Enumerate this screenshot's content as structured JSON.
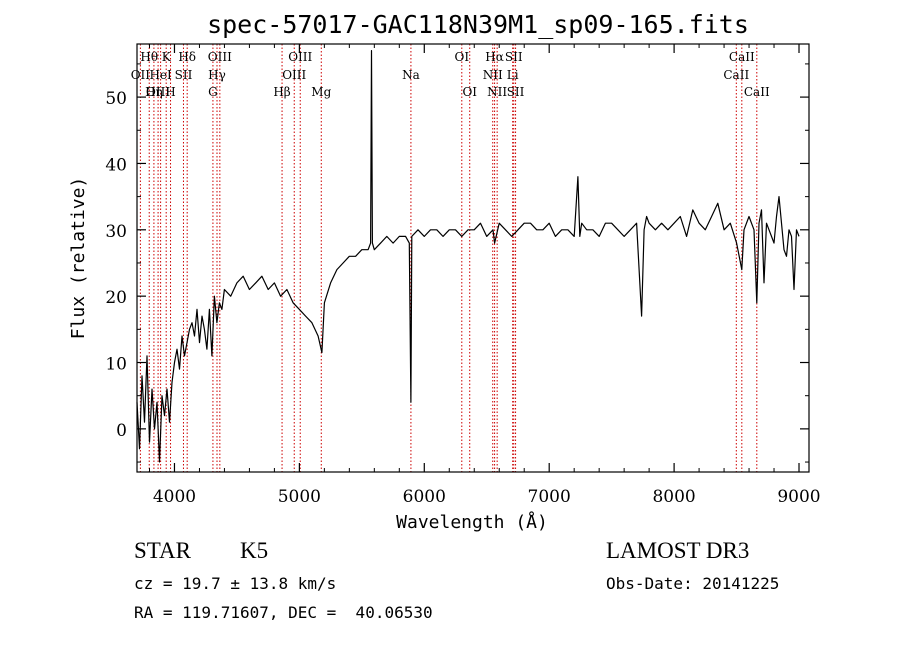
{
  "chart_data": {
    "type": "line",
    "title": "spec-57017-GAC118N39M1_sp09-165.fits",
    "xlabel": "Wavelength (Å)",
    "ylabel": "Flux (relative)",
    "xlim": [
      3700,
      9080
    ],
    "ylim": [
      -6.5,
      58
    ],
    "xticks": [
      4000,
      5000,
      6000,
      7000,
      8000,
      9000
    ],
    "xtick_labels": [
      "4000",
      "5000",
      "6000",
      "7000",
      "8000",
      "9000"
    ],
    "yticks": [
      0,
      10,
      20,
      30,
      40,
      50
    ],
    "ytick_labels": [
      "0",
      "10",
      "20",
      "30",
      "40",
      "50"
    ],
    "grid": false,
    "series": [
      {
        "name": "Flux",
        "x": [
          3700,
          3720,
          3740,
          3760,
          3780,
          3800,
          3820,
          3840,
          3860,
          3880,
          3900,
          3920,
          3940,
          3960,
          3980,
          4000,
          4020,
          4040,
          4060,
          4080,
          4100,
          4120,
          4140,
          4160,
          4180,
          4200,
          4220,
          4240,
          4260,
          4280,
          4300,
          4320,
          4340,
          4360,
          4380,
          4400,
          4450,
          4500,
          4550,
          4600,
          4650,
          4700,
          4750,
          4800,
          4850,
          4900,
          4950,
          5000,
          5050,
          5100,
          5150,
          5180,
          5200,
          5250,
          5300,
          5350,
          5400,
          5450,
          5500,
          5550,
          5570,
          5577,
          5585,
          5600,
          5650,
          5700,
          5750,
          5800,
          5850,
          5880,
          5893,
          5900,
          5950,
          6000,
          6050,
          6100,
          6150,
          6200,
          6250,
          6300,
          6350,
          6400,
          6450,
          6500,
          6550,
          6563,
          6600,
          6650,
          6700,
          6750,
          6800,
          6850,
          6900,
          6950,
          7000,
          7050,
          7100,
          7150,
          7200,
          7230,
          7245,
          7260,
          7300,
          7350,
          7400,
          7450,
          7500,
          7550,
          7600,
          7650,
          7700,
          7740,
          7760,
          7780,
          7800,
          7850,
          7900,
          7950,
          8000,
          8050,
          8100,
          8150,
          8200,
          8250,
          8300,
          8350,
          8400,
          8450,
          8500,
          8542,
          8560,
          8600,
          8640,
          8662,
          8680,
          8700,
          8720,
          8740,
          8760,
          8780,
          8800,
          8820,
          8840,
          8860,
          8880,
          8900,
          8920,
          8940,
          8960,
          8980,
          9000
        ],
        "y": [
          4,
          -3,
          8,
          1,
          11,
          -2,
          6,
          0,
          4,
          -5,
          5,
          2,
          6,
          1,
          7,
          10,
          12,
          9,
          14,
          11,
          13,
          15,
          16,
          14,
          18,
          13,
          17,
          15,
          12,
          18,
          11,
          20,
          16,
          19,
          18,
          21,
          20,
          22,
          23,
          21,
          22,
          23,
          21,
          22,
          20,
          21,
          19,
          18,
          17,
          16,
          14,
          11.5,
          19,
          22,
          24,
          25,
          26,
          26,
          27,
          27,
          28,
          57,
          28,
          27,
          28,
          29,
          28,
          29,
          29,
          28,
          4,
          29,
          30,
          29,
          30,
          30,
          29,
          30,
          30,
          29,
          30,
          30,
          31,
          29,
          30,
          28,
          31,
          30,
          29,
          30,
          31,
          31,
          30,
          30,
          31,
          29,
          30,
          30,
          29,
          38,
          29,
          31,
          30,
          30,
          29,
          31,
          31,
          30,
          29,
          30,
          31,
          17,
          30,
          32,
          31,
          30,
          31,
          30,
          31,
          32,
          29,
          33,
          31,
          30,
          32,
          34,
          30,
          31,
          28,
          24,
          30,
          32,
          30,
          19,
          31,
          33,
          22,
          31,
          30,
          29,
          28,
          32,
          35,
          31,
          27,
          26,
          30,
          29,
          21,
          30,
          29
        ]
      }
    ],
    "lines": [
      {
        "label": "Hθ",
        "wavelength": 3797.9,
        "row": 0
      },
      {
        "label": "OII",
        "wavelength": 3727.1,
        "row": 1
      },
      {
        "label": "OIII",
        "wavelength": 3868.8,
        "row": 2
      },
      {
        "label": "K",
        "wavelength": 3933.7,
        "row": 0
      },
      {
        "label": "HeI",
        "wavelength": 3889.0,
        "row": 1
      },
      {
        "label": "Hη",
        "wavelength": 3835.4,
        "row": 2
      },
      {
        "label": "Hδ",
        "wavelength": 4101.7,
        "row": 0
      },
      {
        "label": "SII",
        "wavelength": 4072.0,
        "row": 1
      },
      {
        "label": "H",
        "wavelength": 3968.5,
        "row": 2
      },
      {
        "label": "OIII",
        "wavelength": 4363.2,
        "row": 0
      },
      {
        "label": "Hγ",
        "wavelength": 4340.5,
        "row": 1
      },
      {
        "label": "G",
        "wavelength": 4307.9,
        "row": 2
      },
      {
        "label": "OIII",
        "wavelength": 5006.8,
        "row": 0
      },
      {
        "label": "OIII",
        "wavelength": 4958.9,
        "row": 1
      },
      {
        "label": "Hβ",
        "wavelength": 4861.3,
        "row": 2
      },
      {
        "label": "Mg",
        "wavelength": 5175.3,
        "row": 2
      },
      {
        "label": "Na",
        "wavelength": 5893.0,
        "row": 1
      },
      {
        "label": "OI",
        "wavelength": 6300.3,
        "row": 0
      },
      {
        "label": "OI",
        "wavelength": 6363.8,
        "row": 2
      },
      {
        "label": "Hα",
        "wavelength": 6562.8,
        "row": 0
      },
      {
        "label": "SII",
        "wavelength": 6716.4,
        "row": 0
      },
      {
        "label": "NII",
        "wavelength": 6548.1,
        "row": 1
      },
      {
        "label": "Li",
        "wavelength": 6707.8,
        "row": 1
      },
      {
        "label": "NII",
        "wavelength": 6583.4,
        "row": 2
      },
      {
        "label": "SII",
        "wavelength": 6730.8,
        "row": 2
      },
      {
        "label": "CaII",
        "wavelength": 8542.1,
        "row": 0
      },
      {
        "label": "CaII",
        "wavelength": 8498.0,
        "row": 1
      },
      {
        "label": "CaII",
        "wavelength": 8662.1,
        "row": 2
      }
    ]
  },
  "info": {
    "object_type": "STAR",
    "subclass": "K5",
    "survey": "LAMOST DR3",
    "cz": "cz = 19.7 ± 13.8 km/s",
    "obs_date": "Obs-Date: 20141225",
    "coords": "RA = 119.71607, DEC =  40.06530"
  },
  "colors": {
    "spectrum": "#000000",
    "line_markers": "#cc0000",
    "axes": "#000000"
  }
}
